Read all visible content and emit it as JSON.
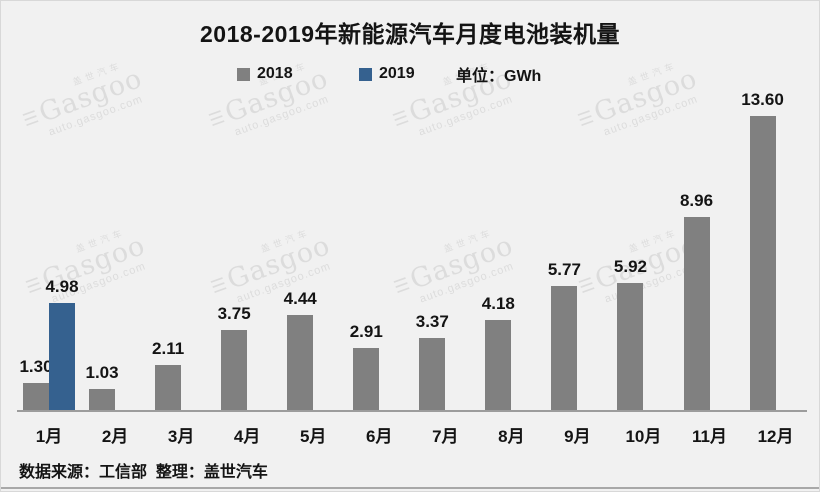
{
  "title": "2018-2019年新能源汽车月度电池装机量",
  "legend": {
    "series_2018": "2018",
    "series_2019": "2019",
    "unit_label": "单位：GWh"
  },
  "source_note": "数据来源：工信部  整理：盖世汽车",
  "watermark": {
    "cn": "盖世汽车",
    "logo": "Gasgoo",
    "url": "auto.gasgoo.com"
  },
  "colors": {
    "background": "#f1f1f1",
    "bar_2018": "#808080",
    "bar_2019": "#35618f",
    "text": "#141414",
    "axis": "#9c9c9c"
  },
  "chart_data": {
    "type": "bar",
    "title": "2018-2019年新能源汽车月度电池装机量",
    "unit": "GWh",
    "categories": [
      "1月",
      "2月",
      "3月",
      "4月",
      "5月",
      "6月",
      "7月",
      "8月",
      "9月",
      "10月",
      "11月",
      "12月"
    ],
    "series": [
      {
        "name": "2018",
        "color": "#808080",
        "values": [
          1.3,
          1.03,
          2.11,
          3.75,
          4.44,
          2.91,
          3.37,
          4.18,
          5.77,
          5.92,
          8.96,
          13.6
        ]
      },
      {
        "name": "2019",
        "color": "#35618f",
        "values": [
          4.98,
          null,
          null,
          null,
          null,
          null,
          null,
          null,
          null,
          null,
          null,
          null
        ]
      }
    ],
    "value_labels_shown": true,
    "value_label_decimals": 2,
    "ylim": [
      0,
      15
    ],
    "grid": false,
    "legend_position": "top",
    "xlabel": "",
    "ylabel": ""
  }
}
